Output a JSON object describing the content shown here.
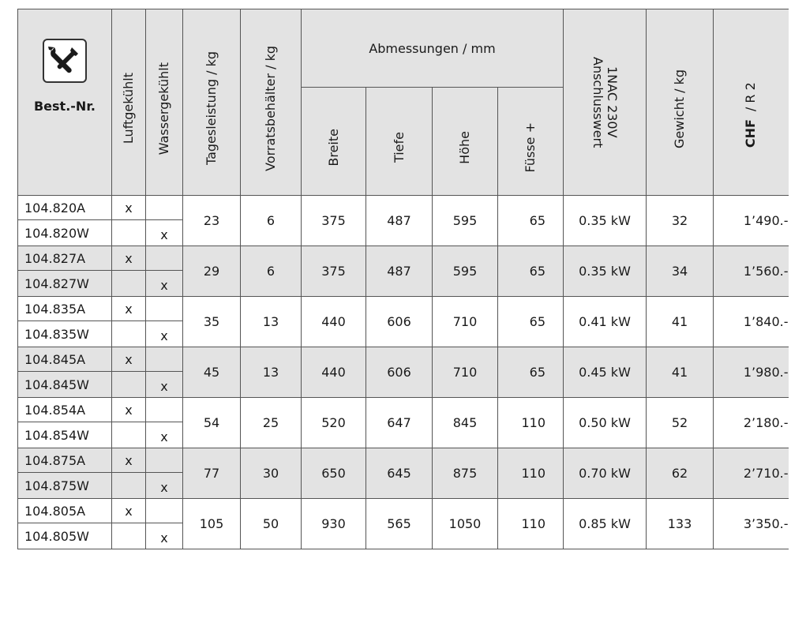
{
  "header": {
    "best_nr": "Best.-Nr.",
    "logo_icon": "tools-icon",
    "luftgekuehlt": "Luftgekühlt",
    "wassergekuehlt": "Wassergekühlt",
    "tagesleistung": "Tagesleistung / kg",
    "vorrat": "Vorratsbehälter / kg",
    "abmessungen": "Abmessungen / mm",
    "breite": "Breite",
    "tiefe": "Tiefe",
    "hoehe": "Höhe",
    "fuesse": "Füsse +",
    "anschluss_1": "Anschlusswert",
    "anschluss_2": "1NAC 230V",
    "gewicht": "Gewicht  / kg",
    "chf": "CHF",
    "r2": "/  R 2"
  },
  "rows": [
    {
      "a": "104.820A",
      "w": "104.820W",
      "luft": "x",
      "wasser": "x",
      "tag": "23",
      "vorrat": "6",
      "breite": "375",
      "tiefe": "487",
      "hoehe": "595",
      "fuesse": "65",
      "anschluss": "0.35 kW",
      "gewicht": "32",
      "preis": "1’490.-"
    },
    {
      "a": "104.827A",
      "w": "104.827W",
      "luft": "x",
      "wasser": "x",
      "tag": "29",
      "vorrat": "6",
      "breite": "375",
      "tiefe": "487",
      "hoehe": "595",
      "fuesse": "65",
      "anschluss": "0.35 kW",
      "gewicht": "34",
      "preis": "1’560.-"
    },
    {
      "a": "104.835A",
      "w": "104.835W",
      "luft": "x",
      "wasser": "x",
      "tag": "35",
      "vorrat": "13",
      "breite": "440",
      "tiefe": "606",
      "hoehe": "710",
      "fuesse": "65",
      "anschluss": "0.41 kW",
      "gewicht": "41",
      "preis": "1’840.-"
    },
    {
      "a": "104.845A",
      "w": "104.845W",
      "luft": "x",
      "wasser": "x",
      "tag": "45",
      "vorrat": "13",
      "breite": "440",
      "tiefe": "606",
      "hoehe": "710",
      "fuesse": "65",
      "anschluss": "0.45 kW",
      "gewicht": "41",
      "preis": "1’980.-"
    },
    {
      "a": "104.854A",
      "w": "104.854W",
      "luft": "x",
      "wasser": "x",
      "tag": "54",
      "vorrat": "25",
      "breite": "520",
      "tiefe": "647",
      "hoehe": "845",
      "fuesse": "110",
      "anschluss": "0.50 kW",
      "gewicht": "52",
      "preis": "2’180.-"
    },
    {
      "a": "104.875A",
      "w": "104.875W",
      "luft": "x",
      "wasser": "x",
      "tag": "77",
      "vorrat": "30",
      "breite": "650",
      "tiefe": "645",
      "hoehe": "875",
      "fuesse": "110",
      "anschluss": "0.70 kW",
      "gewicht": "62",
      "preis": "2’710.-"
    },
    {
      "a": "104.805A",
      "w": "104.805W",
      "luft": "x",
      "wasser": "x",
      "tag": "105",
      "vorrat": "50",
      "breite": "930",
      "tiefe": "565",
      "hoehe": "1050",
      "fuesse": "110",
      "anschluss": "0.85 kW",
      "gewicht": "133",
      "preis": "3’350.-"
    }
  ]
}
